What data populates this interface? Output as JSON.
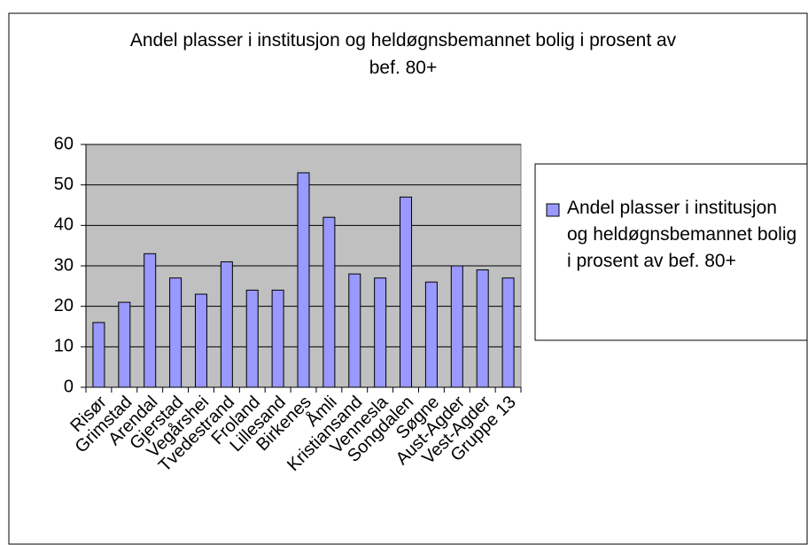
{
  "chart_data": {
    "type": "bar",
    "title": "Andel plasser i institusjon og heldøgnsbemannet bolig i prosent av bef. 80+",
    "categories": [
      "Risør",
      "Grimstad",
      "Arendal",
      "Gjerstad",
      "Vegårshei",
      "Tvedestrand",
      "Froland",
      "Lillesand",
      "Birkenes",
      "Åmli",
      "Kristiansand",
      "Vennesla",
      "Songdalen",
      "Søgne",
      "Aust-Agder",
      "Vest-Agder",
      "Gruppe 13"
    ],
    "series": [
      {
        "name": "Andel plasser i institusjon og heldøgnsbemannet bolig i prosent av bef. 80+",
        "color": "#9999ff",
        "values": [
          16,
          21,
          33,
          27,
          23,
          31,
          24,
          24,
          53,
          42,
          28,
          27,
          47,
          26,
          30,
          29,
          27
        ]
      }
    ],
    "ylim": [
      0,
      60
    ],
    "yticks": [
      0,
      10,
      20,
      30,
      40,
      50,
      60
    ],
    "grid": true,
    "legend": "right"
  }
}
